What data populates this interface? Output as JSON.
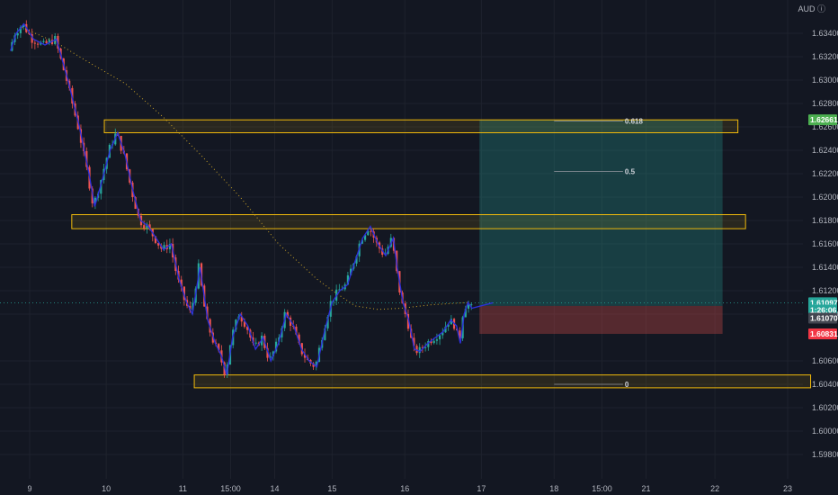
{
  "header": {
    "currency_label": "AUD"
  },
  "chart_data": {
    "type": "candlestick",
    "price_ticks": [
      "1.63400",
      "1.63200",
      "1.63000",
      "1.62800",
      "1.62600",
      "1.62400",
      "1.62200",
      "1.62000",
      "1.61800",
      "1.61600",
      "1.61400",
      "1.61200",
      "1.61000",
      "1.60600",
      "1.60400",
      "1.60200",
      "1.60000",
      "1.59800"
    ],
    "time_ticks": [
      {
        "label": "9",
        "t": 0.5
      },
      {
        "label": "10",
        "t": 2.5
      },
      {
        "label": "11",
        "t": 4.5
      },
      {
        "label": "15:00",
        "t": 5.75
      },
      {
        "label": "14",
        "t": 6.9
      },
      {
        "label": "15",
        "t": 8.4
      },
      {
        "label": "16",
        "t": 10.3
      },
      {
        "label": "17",
        "t": 12.3
      },
      {
        "label": "18",
        "t": 14.2
      },
      {
        "label": "15:00",
        "t": 15.45
      },
      {
        "label": "21",
        "t": 16.6
      },
      {
        "label": "22",
        "t": 18.4
      },
      {
        "label": "23",
        "t": 20.3
      }
    ],
    "price_path": [
      [
        0,
        1.6325
      ],
      [
        0.15,
        1.634
      ],
      [
        0.35,
        1.6348
      ],
      [
        0.6,
        1.6335
      ],
      [
        0.9,
        1.633
      ],
      [
        1.2,
        1.6335
      ],
      [
        1.5,
        1.63
      ],
      [
        1.8,
        1.626
      ],
      [
        2.05,
        1.622
      ],
      [
        2.2,
        1.6192
      ],
      [
        2.4,
        1.6215
      ],
      [
        2.6,
        1.624
      ],
      [
        2.8,
        1.6255
      ],
      [
        3.0,
        1.6235
      ],
      [
        3.2,
        1.6205
      ],
      [
        3.4,
        1.618
      ],
      [
        3.6,
        1.6175
      ],
      [
        3.8,
        1.6165
      ],
      [
        4.0,
        1.6155
      ],
      [
        4.2,
        1.616
      ],
      [
        4.4,
        1.613
      ],
      [
        4.6,
        1.611
      ],
      [
        4.75,
        1.61
      ],
      [
        4.95,
        1.614
      ],
      [
        5.15,
        1.6095
      ],
      [
        5.35,
        1.6075
      ],
      [
        5.5,
        1.6065
      ],
      [
        5.65,
        1.6048
      ],
      [
        5.8,
        1.608
      ],
      [
        6.0,
        1.61
      ],
      [
        6.2,
        1.609
      ],
      [
        6.4,
        1.607
      ],
      [
        6.6,
        1.608
      ],
      [
        6.8,
        1.606
      ],
      [
        7.0,
        1.6075
      ],
      [
        7.2,
        1.61
      ],
      [
        7.4,
        1.609
      ],
      [
        7.6,
        1.607
      ],
      [
        7.8,
        1.606
      ],
      [
        8.0,
        1.6055
      ],
      [
        8.2,
        1.6085
      ],
      [
        8.4,
        1.611
      ],
      [
        8.6,
        1.612
      ],
      [
        8.8,
        1.6125
      ],
      [
        9.0,
        1.6145
      ],
      [
        9.2,
        1.6165
      ],
      [
        9.4,
        1.6175
      ],
      [
        9.6,
        1.616
      ],
      [
        9.8,
        1.615
      ],
      [
        10.0,
        1.6165
      ],
      [
        10.1,
        1.614
      ],
      [
        10.25,
        1.611
      ],
      [
        10.4,
        1.6095
      ],
      [
        10.55,
        1.607
      ],
      [
        10.7,
        1.6068
      ],
      [
        10.9,
        1.6075
      ],
      [
        11.1,
        1.608
      ],
      [
        11.3,
        1.6085
      ],
      [
        11.5,
        1.6095
      ],
      [
        11.65,
        1.609
      ],
      [
        11.75,
        1.6075
      ],
      [
        11.85,
        1.61
      ],
      [
        11.95,
        1.611
      ],
      [
        12.05,
        1.6105
      ],
      [
        12.6,
        1.61097
      ]
    ],
    "moving_average": [
      [
        0.3,
        1.6345
      ],
      [
        1.2,
        1.6332
      ],
      [
        2.0,
        1.6316
      ],
      [
        3.0,
        1.6297
      ],
      [
        4.0,
        1.6268
      ],
      [
        5.0,
        1.6235
      ],
      [
        6.0,
        1.62
      ],
      [
        7.0,
        1.616
      ],
      [
        8.0,
        1.613
      ],
      [
        8.5,
        1.6118
      ],
      [
        9.0,
        1.6107
      ],
      [
        9.6,
        1.6104
      ],
      [
        10.2,
        1.6105
      ],
      [
        11.0,
        1.6108
      ],
      [
        12.0,
        1.611
      ]
    ],
    "zones": [
      {
        "name": "upper-zone",
        "t0": 2.45,
        "t1": 19.0,
        "y_top": 1.6266,
        "y_bottom": 1.6255
      },
      {
        "name": "middle-zone",
        "t0": 1.6,
        "t1": 19.2,
        "y_top": 1.6185,
        "y_bottom": 1.6173
      },
      {
        "name": "lower-zone",
        "t0": 4.8,
        "t1": 20.9,
        "y_top": 1.6048,
        "y_bottom": 1.6037
      }
    ],
    "fib_levels": [
      {
        "label": "0.618",
        "price": 1.6265,
        "t0": 14.2,
        "t1": 16.0
      },
      {
        "label": "0.5",
        "price": 1.6222,
        "t0": 14.2,
        "t1": 16.0
      },
      {
        "label": "0",
        "price": 1.604,
        "t0": 14.2,
        "t1": 16.0
      }
    ],
    "position": {
      "entry": 1.6107,
      "target": 1.62661,
      "stop": 1.60831,
      "t0": 12.25,
      "t1": 18.6
    },
    "current_price": 1.61097,
    "last_price_line": 1.61097,
    "badges": [
      {
        "text": "1.62661",
        "price": 1.62661,
        "color": "#4caf50"
      },
      {
        "text": "1.61097",
        "price": 1.61097,
        "color": "#26a69a"
      },
      {
        "text": "1:26:06",
        "price": 1.61035,
        "color": "#26a69a"
      },
      {
        "text": "1.61070",
        "price": 1.60965,
        "color": "#434651"
      },
      {
        "text": "1.60831",
        "price": 1.60831,
        "color": "#f23645"
      }
    ],
    "colors": {
      "background": "#131722",
      "up": "#26a69a",
      "down": "#ef5350",
      "line": "#2e30d8",
      "ma": "#c9a227",
      "zone": "#f0b90b",
      "target_fill": "#26a69a",
      "stop_fill": "#ef5350",
      "grid": "#1e222d"
    }
  }
}
